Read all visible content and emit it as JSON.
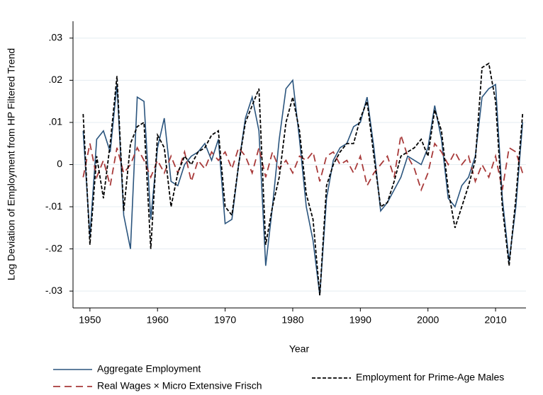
{
  "chart_data": {
    "type": "line",
    "y_label": "Log Deviation of Employment from HP Filtered Trend",
    "x_label": "Year",
    "xlim": [
      1947.5,
      2014.5
    ],
    "xticks": [
      1950,
      1960,
      1970,
      1980,
      1990,
      2000,
      2010
    ],
    "ylim": [
      -0.034,
      0.034
    ],
    "yticks": [
      {
        "value": 0.03,
        "label": ".03"
      },
      {
        "value": 0.02,
        "label": ".02"
      },
      {
        "value": 0.01,
        "label": ".01"
      },
      0,
      {
        "value": -0.01,
        "label": "-.01"
      },
      {
        "value": -0.02,
        "label": "-.02"
      },
      {
        "value": -0.03,
        "label": "-.03"
      }
    ],
    "grid": true,
    "x": [
      1949,
      1950,
      1951,
      1952,
      1953,
      1954,
      1955,
      1956,
      1957,
      1958,
      1959,
      1960,
      1961,
      1962,
      1963,
      1964,
      1965,
      1966,
      1967,
      1968,
      1969,
      1970,
      1971,
      1972,
      1973,
      1974,
      1975,
      1976,
      1977,
      1978,
      1979,
      1980,
      1981,
      1982,
      1983,
      1984,
      1985,
      1986,
      1987,
      1988,
      1989,
      1990,
      1991,
      1992,
      1993,
      1994,
      1995,
      1996,
      1997,
      1998,
      1999,
      2000,
      2001,
      2002,
      2003,
      2004,
      2005,
      2006,
      2007,
      2008,
      2009,
      2010,
      2011,
      2012,
      2013,
      2014
    ],
    "series": [
      {
        "name": "Aggregate Employment",
        "color": "#2b557e",
        "style": "solid",
        "values": [
          0.008,
          -0.017,
          0.006,
          0.008,
          0.003,
          0.019,
          -0.012,
          -0.02,
          0.016,
          0.015,
          -0.013,
          0.004,
          0.011,
          -0.004,
          -0.005,
          0.0,
          0.002,
          0.003,
          0.005,
          0.001,
          0.006,
          -0.014,
          -0.013,
          0.0,
          0.011,
          0.016,
          0.008,
          -0.024,
          -0.01,
          0.006,
          0.018,
          0.02,
          0.006,
          -0.01,
          -0.018,
          -0.031,
          -0.008,
          0.001,
          0.004,
          0.005,
          0.009,
          0.01,
          0.016,
          0.004,
          -0.011,
          -0.009,
          -0.006,
          -0.003,
          0.002,
          0.001,
          0.0,
          0.004,
          0.014,
          0.006,
          -0.008,
          -0.01,
          -0.005,
          -0.003,
          0.002,
          0.016,
          0.018,
          0.019,
          -0.008,
          -0.023,
          -0.01,
          0.01
        ]
      },
      {
        "name": "Real Wages × Micro Extensive Frisch",
        "color": "#a83a3a",
        "style": "longdash",
        "values": [
          -0.003,
          0.005,
          -0.003,
          0.001,
          -0.005,
          0.004,
          -0.002,
          0.0,
          0.004,
          0.001,
          -0.003,
          0.001,
          -0.002,
          0.002,
          -0.002,
          0.003,
          -0.004,
          0.001,
          -0.001,
          0.003,
          0.001,
          0.003,
          -0.001,
          0.004,
          0.002,
          -0.002,
          0.004,
          -0.003,
          0.003,
          -0.001,
          0.001,
          -0.002,
          0.002,
          0.001,
          0.003,
          -0.004,
          0.002,
          0.003,
          0.0,
          0.001,
          -0.002,
          0.002,
          -0.005,
          -0.002,
          0.0,
          0.002,
          -0.003,
          0.007,
          0.002,
          -0.001,
          -0.006,
          -0.002,
          0.005,
          0.003,
          0.0,
          0.003,
          0.0,
          0.002,
          -0.004,
          0.0,
          -0.003,
          0.002,
          -0.006,
          0.004,
          0.003,
          -0.002
        ]
      },
      {
        "name": "Employment for Prime-Age Males",
        "color": "#000000",
        "style": "dash",
        "values": [
          0.012,
          -0.019,
          0.002,
          -0.008,
          0.005,
          0.021,
          -0.011,
          0.005,
          0.009,
          0.01,
          -0.02,
          0.007,
          0.004,
          -0.01,
          -0.002,
          0.002,
          0.0,
          0.003,
          0.004,
          0.007,
          0.008,
          -0.01,
          -0.012,
          0.0,
          0.01,
          0.014,
          0.018,
          -0.019,
          -0.01,
          -0.003,
          0.01,
          0.016,
          0.008,
          -0.007,
          -0.013,
          -0.031,
          -0.005,
          0.0,
          0.003,
          0.005,
          0.005,
          0.011,
          0.015,
          0.002,
          -0.01,
          -0.009,
          -0.004,
          0.002,
          0.003,
          0.004,
          0.006,
          0.002,
          0.013,
          0.008,
          -0.006,
          -0.015,
          -0.01,
          -0.005,
          0.001,
          0.023,
          0.024,
          0.015,
          -0.01,
          -0.024,
          -0.008,
          0.012
        ]
      }
    ]
  }
}
